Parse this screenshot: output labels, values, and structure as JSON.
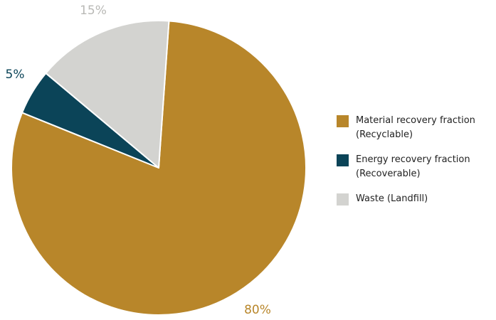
{
  "chart_data": {
    "type": "pie",
    "title": "",
    "slices": [
      {
        "label": "Material recovery fraction (Recyclable)",
        "value": 80,
        "display": "80%",
        "color": "#b8862a"
      },
      {
        "label": "Energy recovery fraction (Recoverable)",
        "value": 5,
        "display": "5%",
        "color": "#0b4458"
      },
      {
        "label": "Waste (Landfill)",
        "value": 15,
        "display": "15%",
        "color": "#d3d3d0"
      }
    ],
    "legend_placement": "right",
    "start_angle_deg": 4,
    "direction": "clockwise"
  },
  "legend": {
    "items": [
      {
        "label": "Material recovery fraction\n(Recyclable)",
        "color": "#b8862a"
      },
      {
        "label": "Energy recovery fraction\n(Recoverable)",
        "color": "#0b4458"
      },
      {
        "label": "Waste (Landfill)",
        "color": "#d3d3d0"
      }
    ]
  }
}
